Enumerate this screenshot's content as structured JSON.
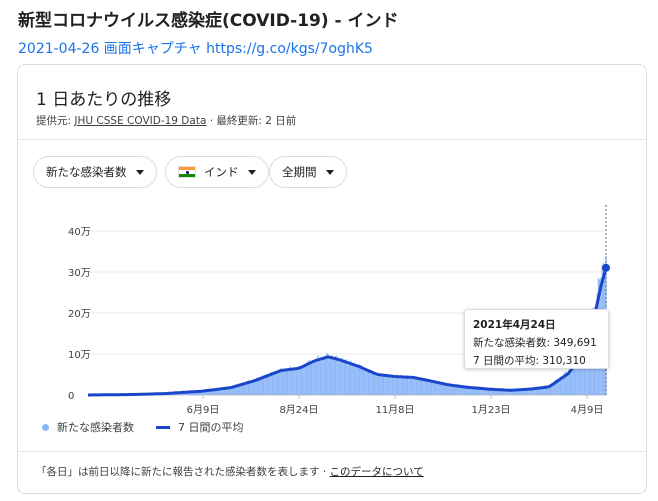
{
  "header": {
    "title": "新型コロナウイルス感染症(COVID-19) - インド",
    "capture_text": "2021-04-26 画面キャプチャ https://g.co/kgs/7oghK5"
  },
  "card": {
    "title": "1 日あたりの推移",
    "source_prefix": "提供元:",
    "source_link": "JHU CSSE COVID-19 Data",
    "updated": "· 最終更新: 2 日前"
  },
  "filters": {
    "metric": "新たな感染者数",
    "country": "インド",
    "period": "全期間"
  },
  "tooltip": {
    "date": "2021年4月24日",
    "new_cases": "新たな感染者数: 349,691",
    "average": "7 日間の平均: 310,310"
  },
  "legend": {
    "bars": "新たな感染者数",
    "line": "7 日間の平均"
  },
  "footer": {
    "note": "「各日」は前日以降に新たに報告された感染者数を表します ·",
    "link": "このデータについて"
  },
  "colors": {
    "bar": "#8ab4f8",
    "line": "#1a47c9",
    "link": "#1a73e8"
  },
  "chart_data": {
    "type": "bar",
    "y_ticks": [
      "0",
      "10万",
      "20万",
      "30万",
      "40万"
    ],
    "y_tick_values": [
      0,
      100000,
      200000,
      300000,
      400000
    ],
    "ylim": [
      0,
      400000
    ],
    "x_tick_labels": [
      "6月9日",
      "8月24日",
      "11月8日",
      "1月23日",
      "4月9日"
    ],
    "x_tick_dates": [
      "2020-06-09",
      "2020-08-24",
      "2020-11-08",
      "2021-01-23",
      "2021-04-09"
    ],
    "x_range": [
      "2020-03-10",
      "2021-04-24"
    ],
    "grid": true,
    "series": [
      {
        "name": "新たな感染者数",
        "kind": "bar",
        "points": [
          [
            "2020-03-10",
            0
          ],
          [
            "2020-04-15",
            1500
          ],
          [
            "2020-05-10",
            4000
          ],
          [
            "2020-06-09",
            10000
          ],
          [
            "2020-07-01",
            20000
          ],
          [
            "2020-07-20",
            38000
          ],
          [
            "2020-08-10",
            62000
          ],
          [
            "2020-08-24",
            65000
          ],
          [
            "2020-09-05",
            85000
          ],
          [
            "2020-09-16",
            96000
          ],
          [
            "2020-09-25",
            88000
          ],
          [
            "2020-10-10",
            72000
          ],
          [
            "2020-10-25",
            48000
          ],
          [
            "2020-11-08",
            46000
          ],
          [
            "2020-11-22",
            44000
          ],
          [
            "2020-12-05",
            36000
          ],
          [
            "2020-12-20",
            24000
          ],
          [
            "2021-01-05",
            19000
          ],
          [
            "2021-01-23",
            14000
          ],
          [
            "2021-02-08",
            11000
          ],
          [
            "2021-02-25",
            16000
          ],
          [
            "2021-03-10",
            22000
          ],
          [
            "2021-03-25",
            58000
          ],
          [
            "2021-04-05",
            100000
          ],
          [
            "2021-04-15",
            215000
          ],
          [
            "2021-04-20",
            295000
          ],
          [
            "2021-04-24",
            349691
          ]
        ]
      },
      {
        "name": "7 日間の平均",
        "kind": "line",
        "points": [
          [
            "2020-03-10",
            0
          ],
          [
            "2020-04-15",
            1200
          ],
          [
            "2020-05-10",
            3500
          ],
          [
            "2020-06-09",
            9500
          ],
          [
            "2020-07-01",
            18000
          ],
          [
            "2020-07-20",
            35000
          ],
          [
            "2020-08-10",
            60000
          ],
          [
            "2020-08-24",
            65000
          ],
          [
            "2020-09-05",
            83000
          ],
          [
            "2020-09-16",
            93000
          ],
          [
            "2020-09-25",
            86000
          ],
          [
            "2020-10-10",
            70000
          ],
          [
            "2020-10-25",
            50000
          ],
          [
            "2020-11-08",
            45000
          ],
          [
            "2020-11-22",
            43000
          ],
          [
            "2020-12-05",
            35000
          ],
          [
            "2020-12-20",
            25000
          ],
          [
            "2021-01-05",
            18500
          ],
          [
            "2021-01-23",
            14000
          ],
          [
            "2021-02-08",
            11500
          ],
          [
            "2021-02-25",
            15000
          ],
          [
            "2021-03-10",
            20000
          ],
          [
            "2021-03-25",
            52000
          ],
          [
            "2021-04-05",
            95000
          ],
          [
            "2021-04-15",
            195000
          ],
          [
            "2021-04-20",
            265000
          ],
          [
            "2021-04-24",
            310310
          ]
        ]
      }
    ],
    "highlight_date": "2021-04-24"
  }
}
